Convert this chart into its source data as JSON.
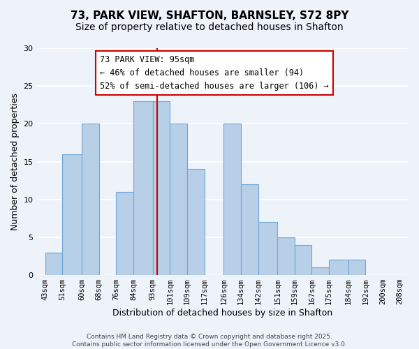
{
  "title_line1": "73, PARK VIEW, SHAFTON, BARNSLEY, S72 8PY",
  "title_line2": "Size of property relative to detached houses in Shafton",
  "xlabel": "Distribution of detached houses by size in Shafton",
  "ylabel": "Number of detached properties",
  "bar_edges": [
    43,
    51,
    60,
    68,
    76,
    84,
    93,
    101,
    109,
    117,
    126,
    134,
    142,
    151,
    159,
    167,
    175,
    184,
    192,
    200,
    208,
    216
  ],
  "bar_heights": [
    3,
    16,
    20,
    0,
    11,
    23,
    23,
    20,
    14,
    0,
    20,
    12,
    7,
    5,
    4,
    1,
    2,
    2,
    0,
    0,
    0
  ],
  "bar_color": "#b8cfe8",
  "bar_edge_color": "#6fa8d6",
  "vline_x": 95,
  "vline_color": "#cc0000",
  "annotation_box_color": "#cc0000",
  "annotation_text_line1": "73 PARK VIEW: 95sqm",
  "annotation_text_line2": "← 46% of detached houses are smaller (94)",
  "annotation_text_line3": "52% of semi-detached houses are larger (106) →",
  "ylim": [
    0,
    30
  ],
  "yticks": [
    0,
    5,
    10,
    15,
    20,
    25,
    30
  ],
  "tick_labels": [
    "43sqm",
    "51sqm",
    "60sqm",
    "68sqm",
    "76sqm",
    "84sqm",
    "93sqm",
    "101sqm",
    "109sqm",
    "117sqm",
    "126sqm",
    "134sqm",
    "142sqm",
    "151sqm",
    "159sqm",
    "167sqm",
    "175sqm",
    "184sqm",
    "192sqm",
    "200sqm",
    "208sqm"
  ],
  "footer_text": "Contains HM Land Registry data © Crown copyright and database right 2025.\nContains public sector information licensed under the Open Government Licence v3.0.",
  "bg_color": "#eef2f9",
  "grid_color": "#ffffff",
  "title_fontsize": 11,
  "subtitle_fontsize": 10,
  "axis_label_fontsize": 9,
  "tick_fontsize": 7.5,
  "annotation_fontsize": 8.5
}
